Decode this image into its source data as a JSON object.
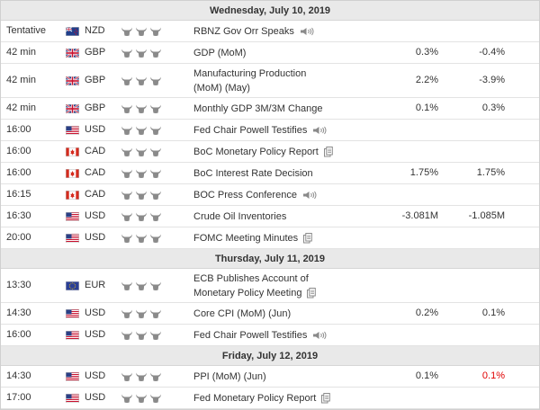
{
  "days": [
    {
      "label": "Wednesday, July 10, 2019",
      "events": [
        {
          "time": "Tentative",
          "flag": "NZ-flag-icon",
          "currency": "NZD",
          "event": [
            "RBNZ Gov Orr Speaks"
          ],
          "icon": "speaker-icon",
          "actual": "",
          "forecast": "",
          "previous": ""
        },
        {
          "time": "42 min",
          "flag": "GB-flag-icon",
          "currency": "GBP",
          "event": [
            "GDP (MoM)"
          ],
          "icon": "",
          "actual": "",
          "forecast": "0.3%",
          "previous": "-0.4%"
        },
        {
          "time": "42 min",
          "flag": "GB-flag-icon",
          "currency": "GBP",
          "event": [
            "Manufacturing Production",
            "(MoM) (May)"
          ],
          "icon": "",
          "actual": "",
          "forecast": "2.2%",
          "previous": "-3.9%"
        },
        {
          "time": "42 min",
          "flag": "GB-flag-icon",
          "currency": "GBP",
          "event": [
            "Monthly GDP 3M/3M Change"
          ],
          "icon": "",
          "actual": "",
          "forecast": "0.1%",
          "previous": "0.3%"
        },
        {
          "time": "16:00",
          "flag": "US-flag-icon",
          "currency": "USD",
          "event": [
            "Fed Chair Powell Testifies"
          ],
          "icon": "speaker-icon",
          "actual": "",
          "forecast": "",
          "previous": ""
        },
        {
          "time": "16:00",
          "flag": "CA-flag-icon",
          "currency": "CAD",
          "event": [
            "BoC Monetary Policy Report"
          ],
          "icon": "document-icon",
          "actual": "",
          "forecast": "",
          "previous": ""
        },
        {
          "time": "16:00",
          "flag": "CA-flag-icon",
          "currency": "CAD",
          "event": [
            "BoC Interest Rate Decision"
          ],
          "icon": "",
          "actual": "",
          "forecast": "1.75%",
          "previous": "1.75%"
        },
        {
          "time": "16:15",
          "flag": "CA-flag-icon",
          "currency": "CAD",
          "event": [
            "BOC Press Conference"
          ],
          "icon": "speaker-icon",
          "actual": "",
          "forecast": "",
          "previous": ""
        },
        {
          "time": "16:30",
          "flag": "US-flag-icon",
          "currency": "USD",
          "event": [
            "Crude Oil Inventories"
          ],
          "icon": "",
          "actual": "",
          "forecast": "-3.081M",
          "previous": "-1.085M"
        },
        {
          "time": "20:00",
          "flag": "US-flag-icon",
          "currency": "USD",
          "event": [
            "FOMC Meeting Minutes"
          ],
          "icon": "document-icon",
          "actual": "",
          "forecast": "",
          "previous": ""
        }
      ]
    },
    {
      "label": "Thursday, July 11, 2019",
      "events": [
        {
          "time": "13:30",
          "flag": "EU-flag-icon",
          "currency": "EUR",
          "event": [
            "ECB Publishes Account of",
            "Monetary Policy Meeting"
          ],
          "icon": "document-icon",
          "actual": "",
          "forecast": "",
          "previous": ""
        },
        {
          "time": "14:30",
          "flag": "US-flag-icon",
          "currency": "USD",
          "event": [
            "Core CPI (MoM) (Jun)"
          ],
          "icon": "",
          "actual": "",
          "forecast": "0.2%",
          "previous": "0.1%"
        },
        {
          "time": "16:00",
          "flag": "US-flag-icon",
          "currency": "USD",
          "event": [
            "Fed Chair Powell Testifies"
          ],
          "icon": "speaker-icon",
          "actual": "",
          "forecast": "",
          "previous": ""
        }
      ]
    },
    {
      "label": "Friday, July 12, 2019",
      "events": [
        {
          "time": "14:30",
          "flag": "US-flag-icon",
          "currency": "USD",
          "event": [
            "PPI (MoM) (Jun)"
          ],
          "icon": "",
          "actual": "",
          "forecast": "0.1%",
          "previous": "0.1%",
          "previous_color": "#e00000"
        },
        {
          "time": "17:00",
          "flag": "US-flag-icon",
          "currency": "USD",
          "event": [
            "Fed Monetary Policy Report"
          ],
          "icon": "document-icon",
          "actual": "",
          "forecast": "",
          "previous": ""
        }
      ]
    }
  ],
  "importance_icon": "bull-icon",
  "colors": {
    "header_bg": "#e9e9e9",
    "negative": "#e00000",
    "icon_gray": "#8a8a8a"
  }
}
